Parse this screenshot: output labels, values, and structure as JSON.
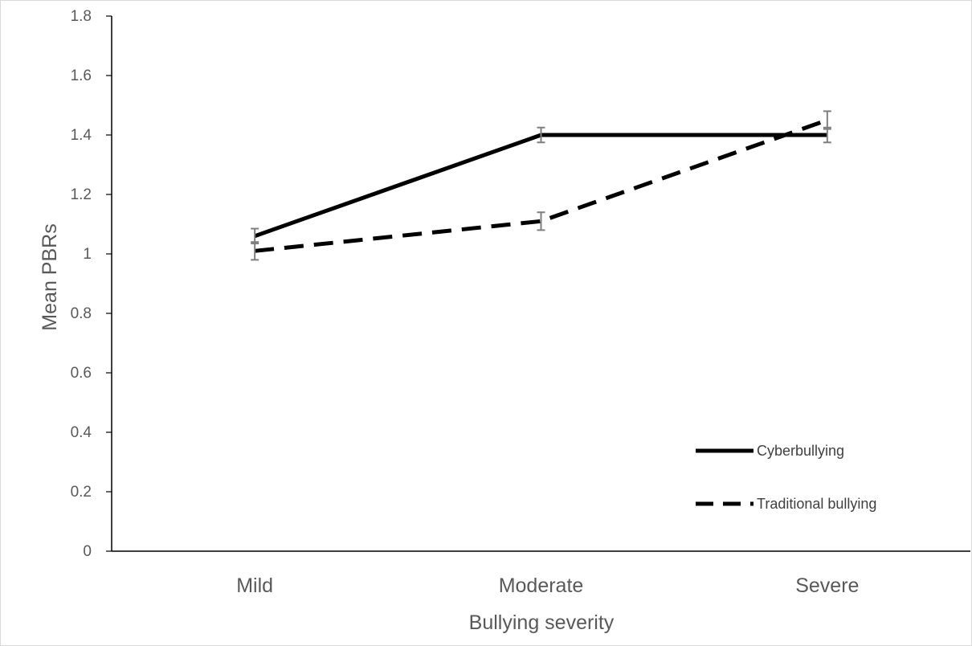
{
  "chart_data": {
    "type": "line",
    "categories": [
      "Mild",
      "Moderate",
      "Severe"
    ],
    "series": [
      {
        "name": "Cyberbullying",
        "values": [
          1.06,
          1.4,
          1.4
        ],
        "error": [
          0.025,
          0.025,
          0.025
        ],
        "style": "solid",
        "color": "#000000"
      },
      {
        "name": "Traditional bullying",
        "values": [
          1.01,
          1.11,
          1.45
        ],
        "error": [
          0.03,
          0.03,
          0.03
        ],
        "style": "dashed",
        "color": "#000000"
      }
    ],
    "xlabel": "Bullying severity",
    "ylabel": "Mean PBRs",
    "ylim": [
      0,
      1.8
    ],
    "yticks": [
      "0",
      "0.2",
      "0.4",
      "0.6",
      "0.8",
      "1",
      "1.2",
      "1.4",
      "1.6",
      "1.8"
    ],
    "grid": false,
    "legend_position": "bottom-right"
  },
  "colors": {
    "axis": "#000000",
    "error_bar": "#7f7f7f",
    "text": "#595959"
  }
}
